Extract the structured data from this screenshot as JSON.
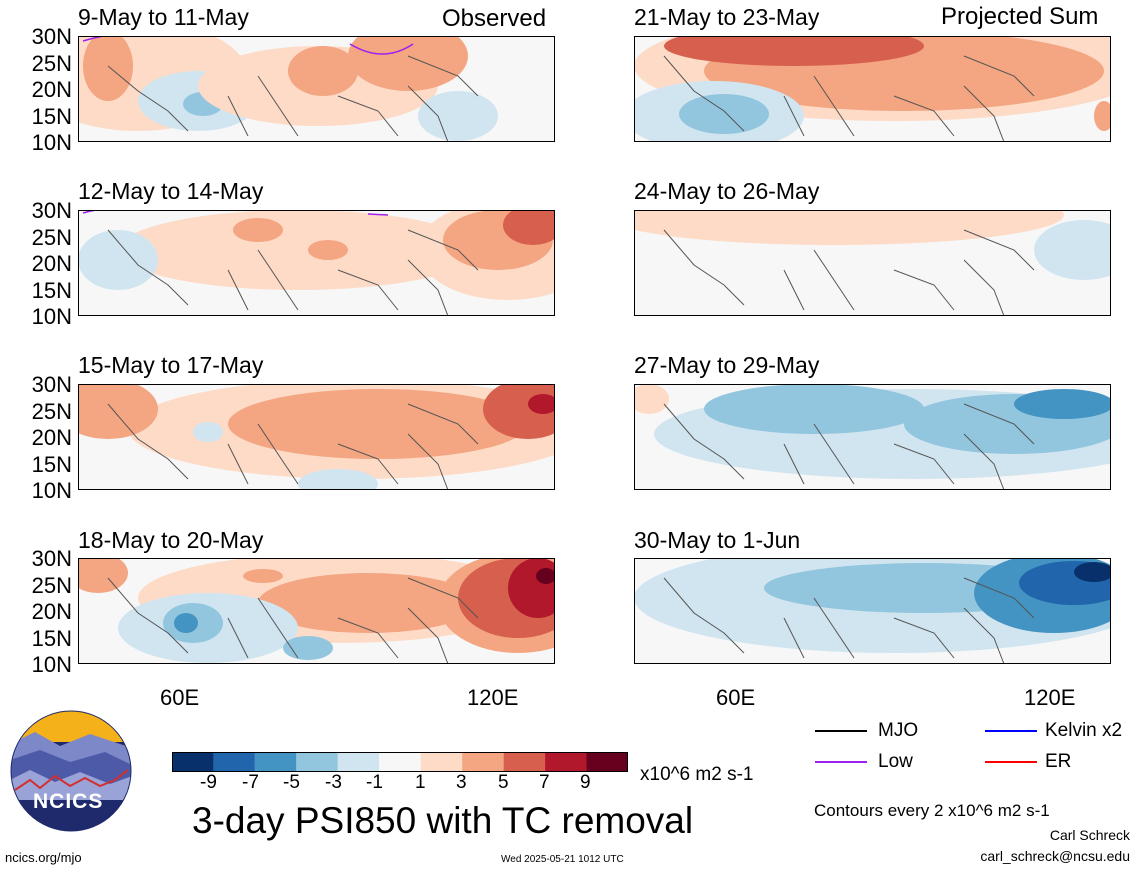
{
  "product_title": "3-day PSI850 with TC removal",
  "column_labels": {
    "left": "Observed",
    "right": "Projected Sum"
  },
  "units_label": "x10^6 m2 s-1",
  "contours_note": "Contours every 2 x10^6 m2 s-1",
  "author": {
    "name": "Carl Schreck",
    "email": "carl_schreck@ncsu.edu"
  },
  "source_url": "ncics.org/mjo",
  "timestamp": "Wed 2025-05-21 1012 UTC",
  "logo_text": "NCICS",
  "latitude_ticks": [
    "30N",
    "25N",
    "20N",
    "15N",
    "10N"
  ],
  "longitude_ticks": [
    "60E",
    "120E"
  ],
  "panels": [
    {
      "col": "left",
      "label": "9-May to 11-May"
    },
    {
      "col": "left",
      "label": "12-May to 14-May"
    },
    {
      "col": "left",
      "label": "15-May to 17-May"
    },
    {
      "col": "left",
      "label": "18-May to 20-May"
    },
    {
      "col": "right",
      "label": "21-May to 23-May"
    },
    {
      "col": "right",
      "label": "24-May to 26-May"
    },
    {
      "col": "right",
      "label": "27-May to 29-May"
    },
    {
      "col": "right",
      "label": "30-May to 1-Jun"
    }
  ],
  "colorbar": {
    "labels": [
      "-9",
      "-7",
      "-5",
      "-3",
      "-1",
      "1",
      "3",
      "5",
      "7",
      "9"
    ],
    "colors": [
      "#08306b",
      "#2166ac",
      "#4393c3",
      "#92c5de",
      "#d1e5f0",
      "#f7f7f7",
      "#fddbc7",
      "#f4a582",
      "#d6604d",
      "#b2182b",
      "#67001f"
    ]
  },
  "legend": [
    {
      "label": "MJO",
      "color": "#000000"
    },
    {
      "label": "Kelvin x2",
      "color": "#0000ff"
    },
    {
      "label": "Low",
      "color": "#a020f0"
    },
    {
      "label": "ER",
      "color": "#ff0000"
    }
  ]
}
